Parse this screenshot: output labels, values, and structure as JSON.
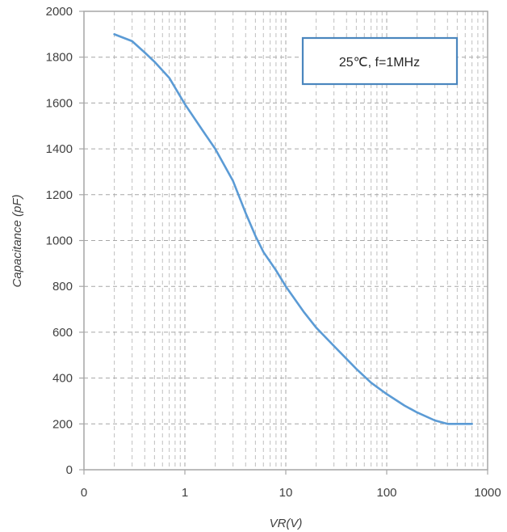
{
  "chart_data": {
    "type": "line",
    "x_scale": "log",
    "xlabel": "VR(V)",
    "ylabel": "Capacitance (pF)",
    "xlim": [
      0.1,
      1000
    ],
    "ylim": [
      0,
      2000
    ],
    "x_tick_labels": [
      "0",
      "1",
      "10",
      "100",
      "1000"
    ],
    "y_ticks": [
      0,
      200,
      400,
      600,
      800,
      1000,
      1200,
      1400,
      1600,
      1800,
      2000
    ],
    "grid": true,
    "annotation": "25℃, f=1MHz",
    "line_color": "#5B9BD5",
    "series": [
      {
        "x": [
          0.2,
          0.3,
          0.4,
          0.5,
          0.7,
          1,
          1.5,
          2,
          3,
          4,
          5,
          6,
          8,
          10,
          15,
          20,
          30,
          50,
          70,
          100,
          150,
          200,
          300,
          400,
          500,
          700
        ],
        "y": [
          1900,
          1870,
          1820,
          1780,
          1710,
          1595,
          1480,
          1400,
          1260,
          1120,
          1020,
          950,
          870,
          800,
          690,
          620,
          540,
          440,
          380,
          330,
          280,
          250,
          215,
          200,
          200,
          200
        ]
      }
    ]
  }
}
